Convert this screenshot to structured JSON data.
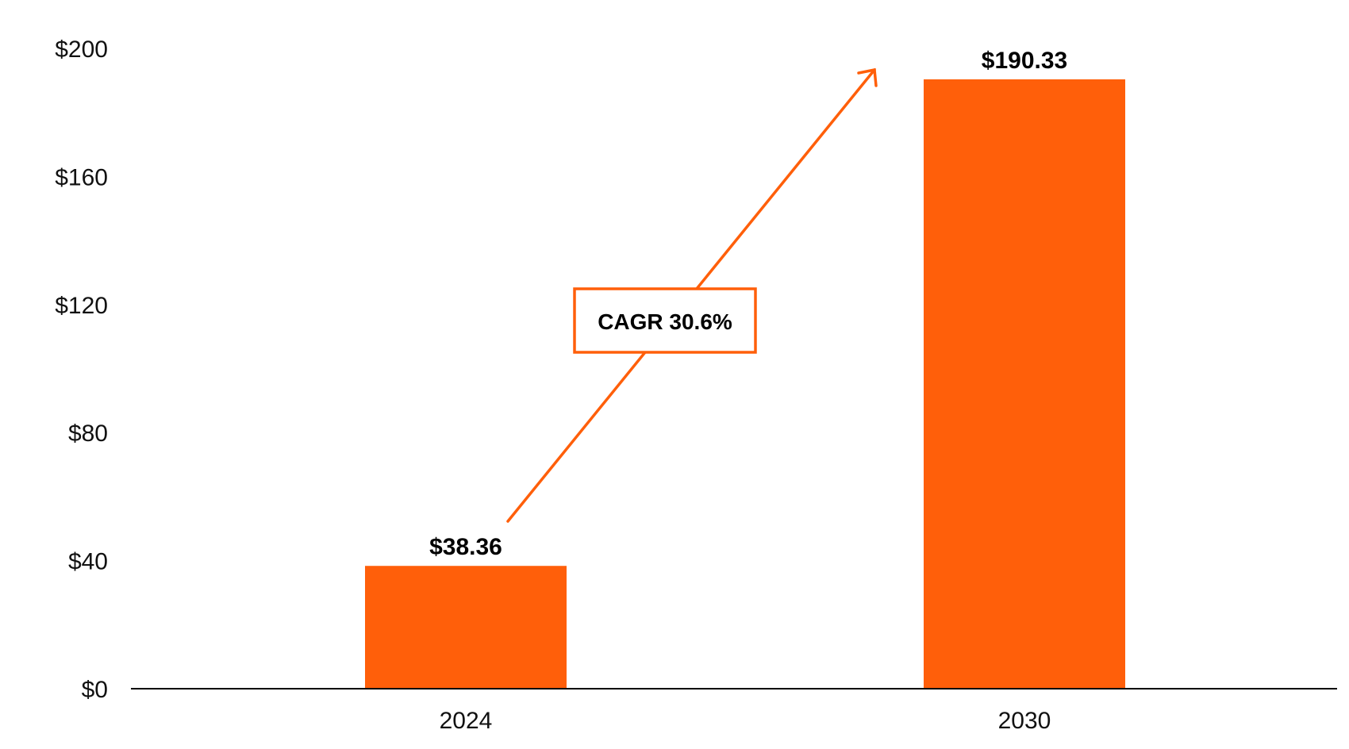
{
  "chart_data": {
    "type": "bar",
    "categories": [
      "2024",
      "2030"
    ],
    "values": [
      38.36,
      190.33
    ],
    "value_labels": [
      "$38.36",
      "$190.33"
    ],
    "y_ticks": [
      0,
      40,
      80,
      120,
      160,
      200
    ],
    "y_tick_labels": [
      "$0",
      "$40",
      "$80",
      "$120",
      "$160",
      "$200"
    ],
    "ylim": [
      0,
      200
    ],
    "title": "",
    "xlabel": "",
    "ylabel": "",
    "grid": false,
    "legend": "none",
    "bar_color": "#FF5F0A",
    "annotation": {
      "text": "CAGR 30.6%",
      "color": "#FF5F0A"
    }
  }
}
